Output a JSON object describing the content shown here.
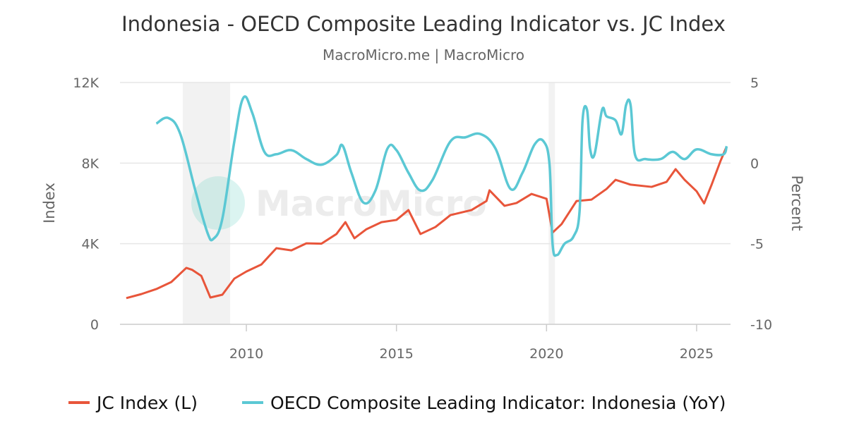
{
  "chart_data": {
    "type": "line",
    "title": "Indonesia - OECD Composite Leading Indicator vs. JC Index",
    "subtitle": "MacroMicro.me | MacroMicro",
    "watermark": "MacroMicro",
    "x_ticks": [
      "2010",
      "2015",
      "2020",
      "2025"
    ],
    "xlim": [
      2005.79,
      2026.13
    ],
    "y_left": {
      "label": "Index",
      "ylim": [
        0,
        12000
      ],
      "ticks": [
        "0",
        "4K",
        "8K",
        "12K"
      ]
    },
    "y_right": {
      "label": "Percent",
      "ylim": [
        -10,
        5
      ],
      "ticks": [
        "-10",
        "-5",
        "0",
        "5"
      ]
    },
    "grid": true,
    "legend_placement": "bottom",
    "recessions": [
      [
        2007.88,
        2009.46
      ],
      [
        2020.07,
        2020.28
      ]
    ],
    "series": [
      {
        "name": "JC Index (L)",
        "axis": "left",
        "color": "#e8553a",
        "x": [
          2006.0,
          2006.5,
          2007.0,
          2007.5,
          2008.0,
          2008.2,
          2008.5,
          2008.8,
          2009.2,
          2009.6,
          2010.0,
          2010.5,
          2011.0,
          2011.5,
          2012.0,
          2012.5,
          2013.0,
          2013.3,
          2013.6,
          2014.0,
          2014.5,
          2015.0,
          2015.4,
          2015.8,
          2016.3,
          2016.8,
          2017.5,
          2018.0,
          2018.1,
          2018.6,
          2019.0,
          2019.5,
          2020.0,
          2020.2,
          2020.5,
          2021.0,
          2021.5,
          2022.0,
          2022.3,
          2022.8,
          2023.5,
          2024.0,
          2024.3,
          2024.6,
          2025.0,
          2025.25,
          2025.5,
          2025.8,
          2026.0
        ],
        "values": [
          1300,
          1500,
          1750,
          2100,
          2800,
          2700,
          2400,
          1330,
          1470,
          2270,
          2620,
          2970,
          3780,
          3670,
          4020,
          4000,
          4480,
          5070,
          4270,
          4720,
          5070,
          5180,
          5670,
          4480,
          4830,
          5420,
          5670,
          6120,
          6650,
          5880,
          6020,
          6470,
          6230,
          4550,
          4970,
          6120,
          6190,
          6720,
          7170,
          6930,
          6820,
          7070,
          7700,
          7170,
          6600,
          6000,
          6930,
          8120,
          8820
        ]
      },
      {
        "name": "OECD Composite Leading Indicator: Indonesia (YoY)",
        "axis": "right",
        "color": "#5bc8d4",
        "x": [
          2007.0,
          2007.4,
          2007.8,
          2008.3,
          2008.7,
          2008.9,
          2009.2,
          2009.6,
          2009.9,
          2010.2,
          2010.6,
          2011.0,
          2011.5,
          2012.0,
          2012.5,
          2013.0,
          2013.2,
          2013.5,
          2013.9,
          2014.3,
          2014.7,
          2015.0,
          2015.4,
          2015.8,
          2016.2,
          2016.8,
          2017.3,
          2017.8,
          2018.3,
          2018.8,
          2019.2,
          2019.6,
          2019.9,
          2020.1,
          2020.2,
          2020.35,
          2020.6,
          2020.9,
          2021.1,
          2021.2,
          2021.35,
          2021.45,
          2021.6,
          2021.85,
          2022.0,
          2022.3,
          2022.5,
          2022.65,
          2022.8,
          2022.95,
          2023.3,
          2023.8,
          2024.2,
          2024.6,
          2025.0,
          2025.5,
          2025.9,
          2026.0
        ],
        "values": [
          2.45,
          2.8,
          1.8,
          -1.7,
          -4.3,
          -4.7,
          -3.45,
          1.35,
          4.05,
          3.1,
          0.7,
          0.55,
          0.8,
          0.25,
          -0.1,
          0.5,
          1.1,
          -0.6,
          -2.45,
          -1.7,
          0.9,
          0.8,
          -0.6,
          -1.7,
          -1.05,
          1.35,
          1.6,
          1.8,
          0.9,
          -1.6,
          -0.6,
          1.15,
          1.35,
          -0.1,
          -5.0,
          -5.7,
          -5.0,
          -4.55,
          -3.0,
          2.65,
          3.3,
          0.9,
          0.55,
          3.3,
          2.9,
          2.65,
          1.8,
          3.6,
          3.6,
          0.5,
          0.25,
          0.25,
          0.7,
          0.25,
          0.85,
          0.55,
          0.55,
          1.05
        ]
      }
    ]
  }
}
